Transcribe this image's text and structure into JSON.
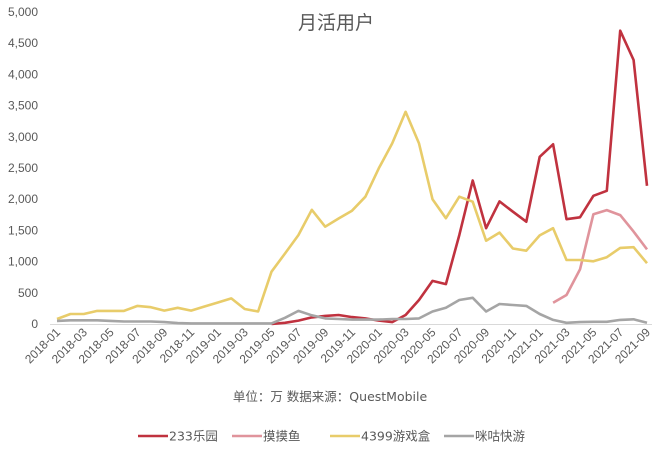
{
  "chart_data": {
    "type": "line",
    "title": "月活用户",
    "note": "单位：万 数据来源：QuestMobile",
    "xlabel": "",
    "ylabel": "",
    "ylim": [
      0,
      5000
    ],
    "y_ticks": [
      "0",
      "500",
      "1,000",
      "1,500",
      "2,000",
      "2,500",
      "3,000",
      "3,500",
      "4,000",
      "4,500",
      "5,000"
    ],
    "y_tick_values": [
      0,
      500,
      1000,
      1500,
      2000,
      2500,
      3000,
      3500,
      4000,
      4500,
      5000
    ],
    "x": [
      "2018-01",
      "2018-02",
      "2018-03",
      "2018-04",
      "2018-05",
      "2018-06",
      "2018-07",
      "2018-08",
      "2018-09",
      "2018-10",
      "2018-11",
      "2018-12",
      "2019-01",
      "2019-02",
      "2019-03",
      "2019-04",
      "2019-05",
      "2019-06",
      "2019-07",
      "2019-08",
      "2019-09",
      "2019-10",
      "2019-11",
      "2019-12",
      "2020-01",
      "2020-02",
      "2020-03",
      "2020-04",
      "2020-05",
      "2020-06",
      "2020-07",
      "2020-08",
      "2020-09",
      "2020-10",
      "2020-11",
      "2020-12",
      "2021-01",
      "2021-02",
      "2021-03",
      "2021-04",
      "2021-05",
      "2021-06",
      "2021-07",
      "2021-08",
      "2021-09"
    ],
    "x_tick_labels": [
      "2018-01",
      "2018-03",
      "2018-05",
      "2018-07",
      "2018-09",
      "2018-11",
      "2019-01",
      "2019-03",
      "2019-05",
      "2019-07",
      "2019-09",
      "2019-11",
      "2020-01",
      "2020-03",
      "2020-05",
      "2020-07",
      "2020-09",
      "2020-11",
      "2021-01",
      "2021-03",
      "2021-05",
      "2021-07",
      "2021-09"
    ],
    "grid": false,
    "legend_position": "bottom",
    "series": [
      {
        "name": "233乐园",
        "color": "#c0323f",
        "values": [
          null,
          null,
          null,
          null,
          null,
          null,
          null,
          null,
          null,
          null,
          null,
          null,
          null,
          null,
          null,
          null,
          0,
          20,
          55,
          105,
          130,
          145,
          110,
          90,
          55,
          30,
          145,
          385,
          690,
          640,
          1425,
          2300,
          1535,
          1965,
          1800,
          1640,
          2680,
          2880,
          1680,
          1710,
          2055,
          2135,
          4700,
          4230,
          2215
        ]
      },
      {
        "name": "摸摸鱼",
        "color": "#e0949c",
        "values": [
          null,
          null,
          null,
          null,
          null,
          null,
          null,
          null,
          null,
          null,
          null,
          null,
          null,
          null,
          null,
          null,
          null,
          null,
          null,
          null,
          null,
          null,
          null,
          null,
          null,
          null,
          null,
          null,
          null,
          null,
          null,
          null,
          null,
          null,
          null,
          null,
          null,
          340,
          465,
          875,
          1760,
          1825,
          1745,
          1480,
          1195
        ]
      },
      {
        "name": "4399游戏盒",
        "color": "#e8cc6a",
        "values": [
          80,
          160,
          160,
          210,
          210,
          210,
          290,
          270,
          215,
          260,
          215,
          280,
          345,
          410,
          240,
          200,
          838,
          1130,
          1425,
          1830,
          1560,
          1690,
          1815,
          2040,
          2495,
          2895,
          3400,
          2895,
          2000,
          1695,
          2040,
          1960,
          1335,
          1465,
          1210,
          1175,
          1420,
          1535,
          1025,
          1025,
          1005,
          1070,
          1220,
          1230,
          975
        ]
      },
      {
        "name": "咪咕快游",
        "color": "#a5a5a5",
        "values": [
          50,
          60,
          60,
          60,
          50,
          40,
          40,
          40,
          30,
          15,
          10,
          10,
          10,
          10,
          10,
          10,
          10,
          100,
          210,
          140,
          90,
          80,
          70,
          70,
          70,
          80,
          80,
          90,
          200,
          260,
          385,
          420,
          200,
          320,
          305,
          290,
          160,
          65,
          20,
          30,
          35,
          35,
          65,
          75,
          20
        ]
      }
    ]
  }
}
